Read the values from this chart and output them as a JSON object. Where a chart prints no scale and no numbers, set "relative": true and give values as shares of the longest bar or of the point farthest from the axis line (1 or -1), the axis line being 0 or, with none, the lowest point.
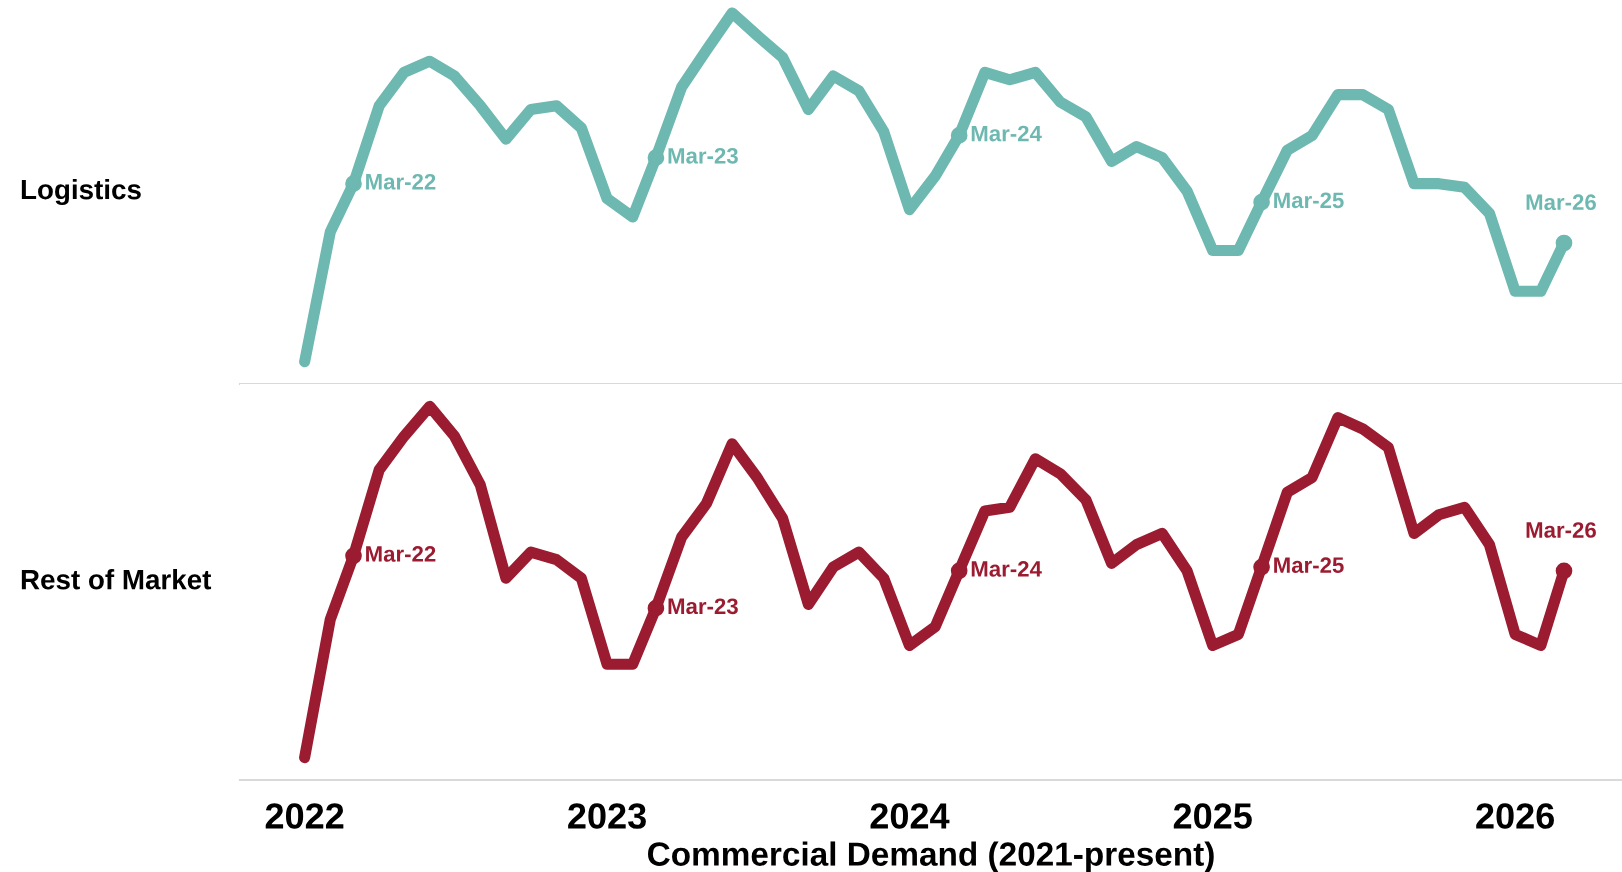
{
  "chart_data": [
    {
      "type": "line",
      "relative": true,
      "ylabel": "Logistics",
      "tick_labels": false,
      "grid": false,
      "legend": false,
      "xlim": [
        "2021-10-15",
        "2026-05-10"
      ],
      "xticks": [
        "2022",
        "2023",
        "2024",
        "2025",
        "2026"
      ],
      "x": [
        "2022-01",
        "2022-02",
        "2022-03",
        "2022-04",
        "2022-05",
        "2022-06",
        "2022-07",
        "2022-08",
        "2022-09",
        "2022-10",
        "2022-11",
        "2022-12",
        "2023-01",
        "2023-02",
        "2023-03",
        "2023-04",
        "2023-05",
        "2023-06",
        "2023-07",
        "2023-08",
        "2023-09",
        "2023-10",
        "2023-11",
        "2023-12",
        "2024-01",
        "2024-02",
        "2024-03",
        "2024-04",
        "2024-05",
        "2024-06",
        "2024-07",
        "2024-08",
        "2024-09",
        "2024-10",
        "2024-11",
        "2024-12",
        "2025-01",
        "2025-02",
        "2025-03",
        "2025-04",
        "2025-05",
        "2025-06",
        "2025-07",
        "2025-08",
        "2025-09",
        "2025-10",
        "2025-11",
        "2025-12",
        "2026-01",
        "2026-02",
        "2026-03"
      ],
      "series": [
        {
          "color": "#6db8b0",
          "values": [
            0.06,
            0.41,
            0.54,
            0.75,
            0.84,
            0.87,
            0.83,
            0.75,
            0.66,
            0.74,
            0.75,
            0.69,
            0.5,
            0.45,
            0.61,
            0.8,
            0.9,
            1,
            0.94,
            0.88,
            0.74,
            0.83,
            0.79,
            0.68,
            0.47,
            0.56,
            0.67,
            0.84,
            0.82,
            0.84,
            0.76,
            0.72,
            0.6,
            0.64,
            0.61,
            0.52,
            0.36,
            0.36,
            0.49,
            0.63,
            0.67,
            0.78,
            0.78,
            0.74,
            0.54,
            0.54,
            0.53,
            0.46,
            0.25,
            0.25,
            0.38
          ]
        }
      ],
      "annotations": [
        {
          "text": "Mar-22",
          "x": "2022-03",
          "y": 0.54
        },
        {
          "text": "Mar-23",
          "x": "2023-03",
          "y": 0.61
        },
        {
          "text": "Mar-24",
          "x": "2024-03",
          "y": 0.67
        },
        {
          "text": "Mar-25",
          "x": "2025-03",
          "y": 0.49
        },
        {
          "text": "Mar-26",
          "x": "2026-03",
          "y": 0.38
        }
      ]
    },
    {
      "type": "line",
      "relative": true,
      "ylabel": "Rest of Market",
      "xlabel": "Commercial Demand (2021-present)",
      "tick_labels": "x",
      "grid": false,
      "legend": false,
      "xlim": [
        "2021-10-15",
        "2026-05-10"
      ],
      "xticks": [
        "2022",
        "2023",
        "2024",
        "2025",
        "2026"
      ],
      "x": [
        "2022-01",
        "2022-02",
        "2022-03",
        "2022-04",
        "2022-05",
        "2022-06",
        "2022-07",
        "2022-08",
        "2022-09",
        "2022-10",
        "2022-11",
        "2022-12",
        "2023-01",
        "2023-02",
        "2023-03",
        "2023-04",
        "2023-05",
        "2023-06",
        "2023-07",
        "2023-08",
        "2023-09",
        "2023-10",
        "2023-11",
        "2023-12",
        "2024-01",
        "2024-02",
        "2024-03",
        "2024-04",
        "2024-05",
        "2024-06",
        "2024-07",
        "2024-08",
        "2024-09",
        "2024-10",
        "2024-11",
        "2024-12",
        "2025-01",
        "2025-02",
        "2025-03",
        "2025-04",
        "2025-05",
        "2025-06",
        "2025-07",
        "2025-08",
        "2025-09",
        "2025-10",
        "2025-11",
        "2025-12",
        "2026-01",
        "2026-02",
        "2026-03"
      ],
      "series": [
        {
          "color": "#9b1c31",
          "values": [
            0.06,
            0.43,
            0.6,
            0.83,
            0.92,
            1,
            0.92,
            0.79,
            0.54,
            0.61,
            0.59,
            0.54,
            0.31,
            0.31,
            0.46,
            0.65,
            0.74,
            0.9,
            0.81,
            0.7,
            0.47,
            0.57,
            0.61,
            0.54,
            0.36,
            0.41,
            0.56,
            0.72,
            0.73,
            0.86,
            0.82,
            0.75,
            0.58,
            0.63,
            0.66,
            0.56,
            0.36,
            0.39,
            0.57,
            0.77,
            0.81,
            0.97,
            0.94,
            0.89,
            0.66,
            0.71,
            0.73,
            0.63,
            0.39,
            0.36,
            0.56
          ]
        }
      ],
      "annotations": [
        {
          "text": "Mar-22",
          "x": "2022-03",
          "y": 0.6
        },
        {
          "text": "Mar-23",
          "x": "2023-03",
          "y": 0.46
        },
        {
          "text": "Mar-24",
          "x": "2024-03",
          "y": 0.56
        },
        {
          "text": "Mar-25",
          "x": "2025-03",
          "y": 0.57
        },
        {
          "text": "Mar-26",
          "x": "2026-03",
          "y": 0.56
        }
      ]
    }
  ]
}
